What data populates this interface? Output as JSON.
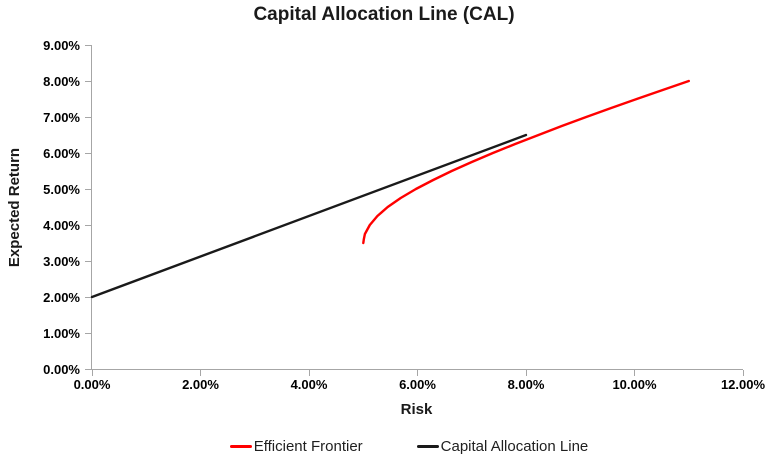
{
  "chart_data": {
    "type": "line",
    "title": "Capital Allocation Line (CAL)",
    "xlabel": "Risk",
    "ylabel": "Expected Return",
    "xlim": [
      0,
      12
    ],
    "ylim": [
      0,
      9
    ],
    "grid": false,
    "legend_position": "bottom",
    "axis_color": "#a6a6a6",
    "tick_label_color": "#000000",
    "x_tick_values": [
      0,
      2,
      4,
      6,
      8,
      10,
      12
    ],
    "x_tick_labels": [
      "0.00%",
      "2.00%",
      "4.00%",
      "6.00%",
      "8.00%",
      "10.00%",
      "12.00%"
    ],
    "y_tick_values": [
      0,
      1,
      2,
      3,
      4,
      5,
      6,
      7,
      8,
      9
    ],
    "y_tick_labels": [
      "0.00%",
      "1.00%",
      "2.00%",
      "3.00%",
      "4.00%",
      "5.00%",
      "6.00%",
      "7.00%",
      "8.00%",
      "9.00%"
    ],
    "series": [
      {
        "name": "Efficient Frontier",
        "color": "#ff0000",
        "points": [
          [
            5.0,
            3.5
          ],
          [
            5.01,
            3.6
          ],
          [
            5.03,
            3.75
          ],
          [
            5.12,
            4.0
          ],
          [
            5.26,
            4.25
          ],
          [
            5.45,
            4.5
          ],
          [
            5.69,
            4.75
          ],
          [
            5.97,
            5.0
          ],
          [
            6.29,
            5.25
          ],
          [
            6.63,
            5.5
          ],
          [
            7.0,
            5.75
          ],
          [
            7.39,
            6.0
          ],
          [
            7.8,
            6.25
          ],
          [
            8.23,
            6.5
          ],
          [
            8.66,
            6.75
          ],
          [
            9.11,
            7.0
          ],
          [
            9.57,
            7.25
          ],
          [
            10.04,
            7.5
          ],
          [
            10.52,
            7.75
          ],
          [
            11.0,
            8.0
          ]
        ]
      },
      {
        "name": "Capital Allocation Line",
        "color": "#1a1a1a",
        "points": [
          [
            0,
            2.0
          ],
          [
            8,
            6.5
          ]
        ]
      }
    ]
  }
}
